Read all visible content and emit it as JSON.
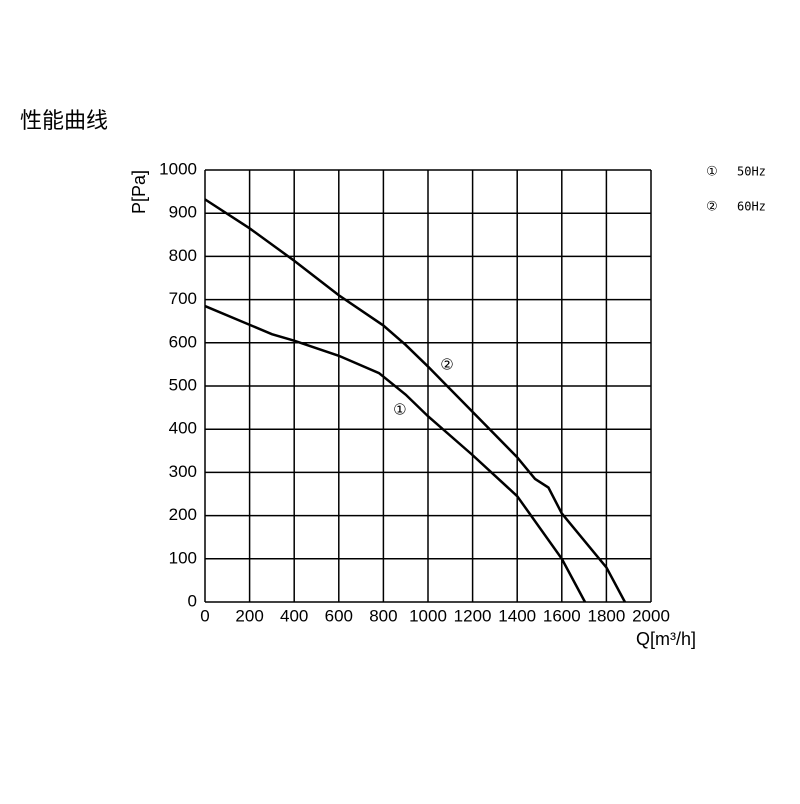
{
  "page_title": "性能曲线",
  "chart_data": {
    "type": "line",
    "x_label": "Q[m³/h]",
    "y_label": "P[Pa]",
    "xlim": [
      0,
      2000
    ],
    "ylim": [
      0,
      1000
    ],
    "xticks": [
      0,
      200,
      400,
      600,
      800,
      1000,
      1200,
      1400,
      1600,
      1800,
      2000
    ],
    "yticks": [
      0,
      100,
      200,
      300,
      400,
      500,
      600,
      700,
      800,
      900,
      1000
    ],
    "grid": true,
    "series": [
      {
        "name": "50Hz",
        "marker": "①",
        "color": "#000000",
        "x": [
          0,
          300,
          400,
          600,
          780,
          900,
          1000,
          1200,
          1400,
          1600,
          1704
        ],
        "values": [
          685,
          620,
          605,
          570,
          530,
          480,
          430,
          340,
          245,
          100,
          0
        ]
      },
      {
        "name": "60Hz",
        "marker": "②",
        "color": "#000000",
        "x": [
          0,
          200,
          400,
          500,
          600,
          800,
          900,
          1000,
          1200,
          1400,
          1480,
          1540,
          1600,
          1800,
          1883
        ],
        "values": [
          932,
          865,
          790,
          750,
          710,
          640,
          595,
          545,
          440,
          335,
          285,
          265,
          205,
          80,
          0
        ]
      }
    ],
    "annotations": [
      {
        "text": "①",
        "x": 874,
        "y": 444
      },
      {
        "text": "②",
        "x": 1085,
        "y": 549
      }
    ],
    "legend": "top-right"
  }
}
